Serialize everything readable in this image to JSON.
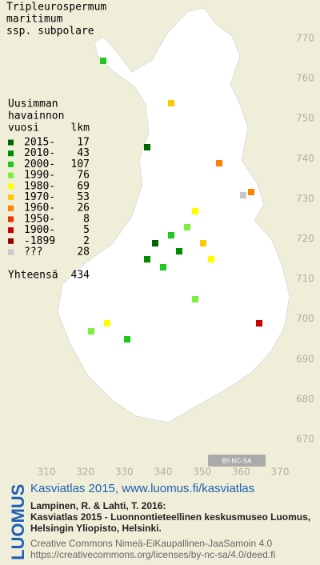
{
  "title": [
    "Tripleurospermum",
    "maritimum",
    "ssp. subpolare"
  ],
  "legend": {
    "heading": [
      "Uusimman",
      "havainnon",
      "vuosi"
    ],
    "count_heading": "lkm",
    "items": [
      {
        "label": "2015-",
        "count": 17,
        "color": "#006400"
      },
      {
        "label": "2010-",
        "count": 43,
        "color": "#008c00"
      },
      {
        "label": "2000-",
        "count": 107,
        "color": "#1ec81e"
      },
      {
        "label": "1990-",
        "count": 76,
        "color": "#78f03c"
      },
      {
        "label": "1980-",
        "count": 69,
        "color": "#ffff00"
      },
      {
        "label": "1970-",
        "count": 53,
        "color": "#ffc800"
      },
      {
        "label": "1960-",
        "count": 26,
        "color": "#ff8200"
      },
      {
        "label": "1950-",
        "count": 8,
        "color": "#e63200"
      },
      {
        "label": "1900-",
        "count": 5,
        "color": "#c80000"
      },
      {
        "label": "-1899",
        "count": 2,
        "color": "#960000"
      },
      {
        "label": "???",
        "count": 28,
        "color": "#c8c8c8"
      }
    ],
    "total_label": "Yhteensä",
    "total": 434
  },
  "axes": {
    "y_ticks": [
      770,
      760,
      750,
      740,
      730,
      720,
      710,
      700,
      690,
      680,
      670
    ],
    "x_ticks": [
      310,
      320,
      330,
      340,
      350,
      360,
      370
    ]
  },
  "license_badge": "BY-NC-SA",
  "brand": "LUOMUS",
  "footer": {
    "link": "Kasviatlas 2015, www.luomus.fi/kasviatlas",
    "citation": [
      "Lampinen, R. & Lahti, T. 2016:",
      "Kasviatlas 2015 - Luonnontieteellinen keskusmuseo Luomus,",
      "Helsingin Yliopisto, Helsinki."
    ],
    "license": [
      "Creative Commons Nimeä-EiKaupallinen-JaaSamoin 4.0",
      "https://creativecommons.org/licenses/by-nc-sa/4.0/deed.fi"
    ]
  }
}
